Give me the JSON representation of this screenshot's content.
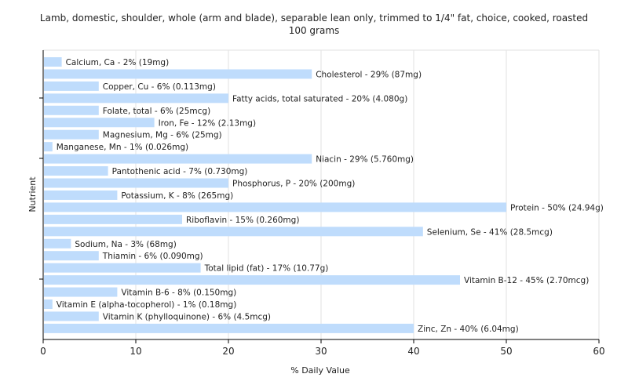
{
  "chart_data": {
    "type": "bar",
    "orientation": "horizontal",
    "title_lines": [
      "Lamb, domestic, shoulder, whole (arm and blade), separable lean only, trimmed to 1/4\" fat, choice, cooked, roasted",
      "100 grams"
    ],
    "xlabel": "% Daily Value",
    "ylabel": "Nutrient",
    "xlim": [
      0,
      60
    ],
    "xticks": [
      0,
      10,
      20,
      30,
      40,
      50,
      60
    ],
    "grid": "vertical",
    "bar_color": "#bfdcfc",
    "categories": [
      "Calcium, Ca",
      "Cholesterol",
      "Copper, Cu",
      "Fatty acids, total saturated",
      "Folate, total",
      "Iron, Fe",
      "Magnesium, Mg",
      "Manganese, Mn",
      "Niacin",
      "Pantothenic acid",
      "Phosphorus, P",
      "Potassium, K",
      "Protein",
      "Riboflavin",
      "Selenium, Se",
      "Sodium, Na",
      "Thiamin",
      "Total lipid (fat)",
      "Vitamin B-12",
      "Vitamin B-6",
      "Vitamin E (alpha-tocopherol)",
      "Vitamin K (phylloquinone)",
      "Zinc, Zn"
    ],
    "values": [
      2,
      29,
      6,
      20,
      6,
      12,
      6,
      1,
      29,
      7,
      20,
      8,
      50,
      15,
      41,
      3,
      6,
      17,
      45,
      8,
      1,
      6,
      40
    ],
    "labels": [
      "Calcium, Ca - 2% (19mg)",
      "Cholesterol - 29% (87mg)",
      "Copper, Cu - 6% (0.113mg)",
      "Fatty acids, total saturated - 20% (4.080g)",
      "Folate, total - 6% (25mcg)",
      "Iron, Fe - 12% (2.13mg)",
      "Magnesium, Mg - 6% (25mg)",
      "Manganese, Mn - 1% (0.026mg)",
      "Niacin - 29% (5.760mg)",
      "Pantothenic acid - 7% (0.730mg)",
      "Phosphorus, P - 20% (200mg)",
      "Potassium, K - 8% (265mg)",
      "Protein - 50% (24.94g)",
      "Riboflavin - 15% (0.260mg)",
      "Selenium, Se - 41% (28.5mcg)",
      "Sodium, Na - 3% (68mg)",
      "Thiamin - 6% (0.090mg)",
      "Total lipid (fat) - 17% (10.77g)",
      "Vitamin B-12 - 45% (2.70mcg)",
      "Vitamin B-6 - 8% (0.150mg)",
      "Vitamin E (alpha-tocopherol) - 1% (0.18mg)",
      "Vitamin K (phylloquinone) - 6% (4.5mcg)",
      "Zinc, Zn - 40% (6.04mg)"
    ]
  }
}
